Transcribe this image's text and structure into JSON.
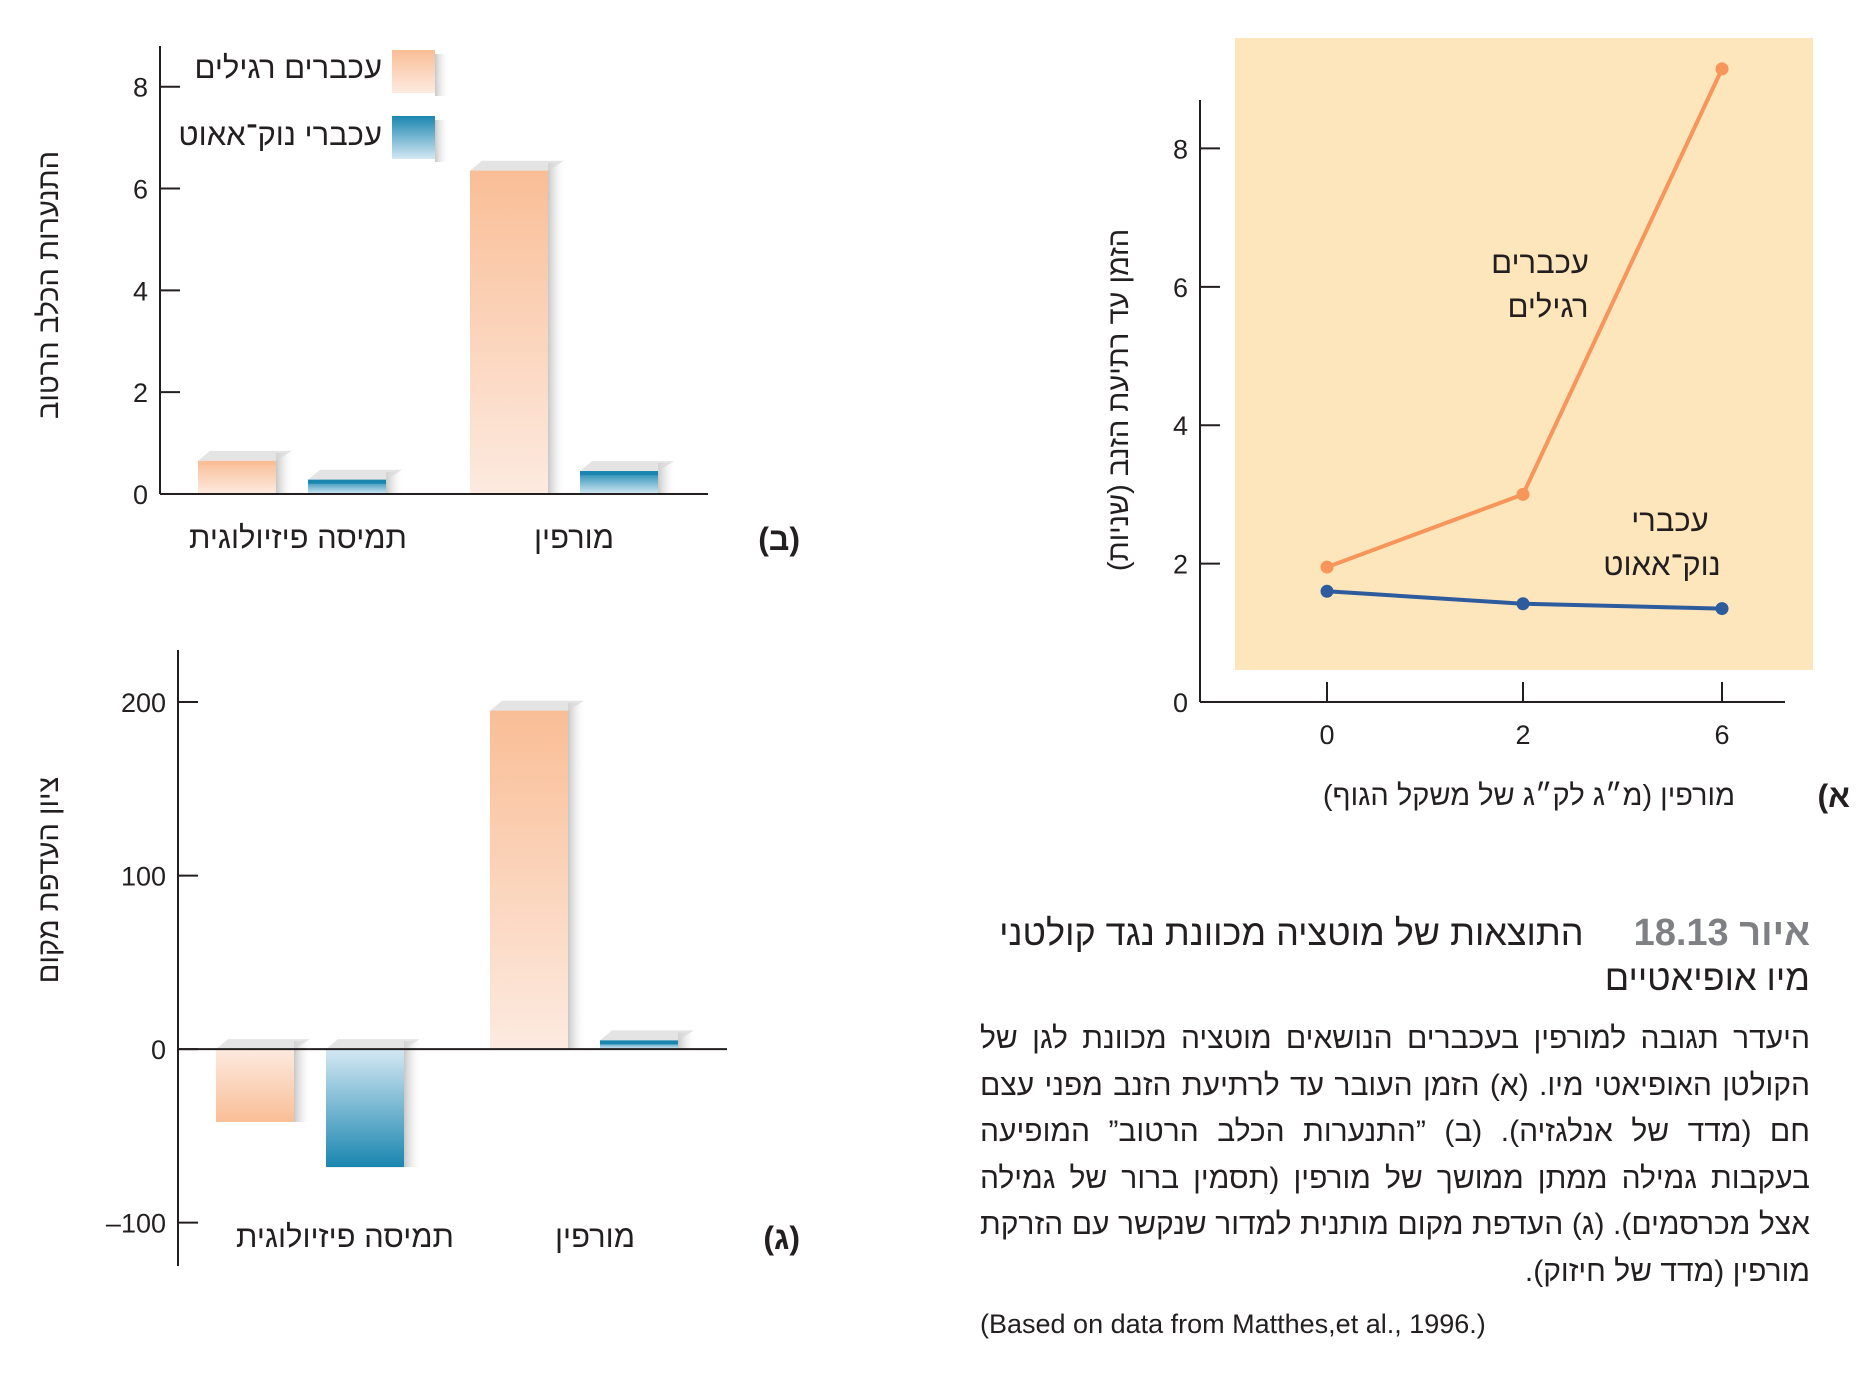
{
  "caption": {
    "figure_number": "איור 18.13",
    "title": "התוצאות של מוטציה מכוונת נגד קולטני מיו אופיאטיים",
    "body": "היעדר תגובה למורפין בעכברים הנושאים מוטציה מכוונת לגן של הקולטן האופיאטי מיו. (א) הזמן העובר עד לרתיעת הזנב מפני עצם חם (מדד של אנלגזיה). (ב) ”התנערות הכלב הרטוב” המופיעה בעקבות גמילה ממתן ממושך של מורפין (תסמין ברור של גמילה אצל מכרסמים). (ג) העדפת מקום מותנית למדור שנקשר עם הזרקת מורפין (מדד של חיזוק).",
    "source": "(Based on data from Matthes,et al., 1996.)"
  },
  "colors": {
    "panel_a_background": "#fde6bb",
    "normal_line": "#f7955a",
    "knockout_line": "#2c5b9e",
    "normal_bar_top": "#f9be96",
    "normal_bar_bottom": "#fdeae0",
    "knockout_bar_top": "#1a86b0",
    "knockout_bar_bottom": "#d4e8f3",
    "axis": "#231f20"
  },
  "chart_data": [
    {
      "id": "panel-a",
      "type": "line",
      "panel_label": "(א",
      "xlabel": "מורפין (מ״ג לק״ג של משקל הגוף)",
      "ylabel": "הזמן עד רתיעת הזנב (שניות)",
      "x": [
        0,
        2,
        6
      ],
      "x_tick_labels": [
        "0",
        "2",
        "6"
      ],
      "ylim": [
        0,
        8.7
      ],
      "y_ticks": [
        0,
        2,
        4,
        6,
        8
      ],
      "series": [
        {
          "name": "עכברים רגילים",
          "label_lines": [
            "עכברים",
            "רגילים"
          ],
          "values": [
            1.95,
            3.0,
            9.15
          ]
        },
        {
          "name": "עכברי נוק־אאוט",
          "label_lines": [
            "עכברי",
            "נוק־אאוט"
          ],
          "values": [
            1.6,
            1.42,
            1.35
          ]
        }
      ]
    },
    {
      "id": "panel-b",
      "type": "bar",
      "panel_label": "(ב)",
      "ylabel": "התנערות הכלב הרטוב",
      "categories": [
        "תמיסה פיזיולוגית",
        "מורפין"
      ],
      "ylim": [
        0,
        8.8
      ],
      "y_ticks": [
        0,
        2,
        4,
        6,
        8
      ],
      "legend": "top-left",
      "series": [
        {
          "name": "עכברים רגילים",
          "values": [
            0.65,
            6.35
          ]
        },
        {
          "name": "עכברי נוק־אאוט",
          "values": [
            0.28,
            0.45
          ]
        }
      ]
    },
    {
      "id": "panel-c",
      "type": "bar",
      "panel_label": "(ג)",
      "ylabel": "ציון העדפת מקום",
      "categories": [
        "תמיסה פיזיולוגית",
        "מורפין"
      ],
      "ylim": [
        -125,
        230
      ],
      "y_ticks": [
        -100,
        0,
        100,
        200
      ],
      "y_tick_labels": [
        "–100",
        "0",
        "100",
        "200"
      ],
      "series": [
        {
          "name": "עכברים רגילים",
          "values": [
            -42,
            195
          ]
        },
        {
          "name": "עכברי נוק־אאוט",
          "values": [
            -68,
            5
          ]
        }
      ]
    }
  ]
}
